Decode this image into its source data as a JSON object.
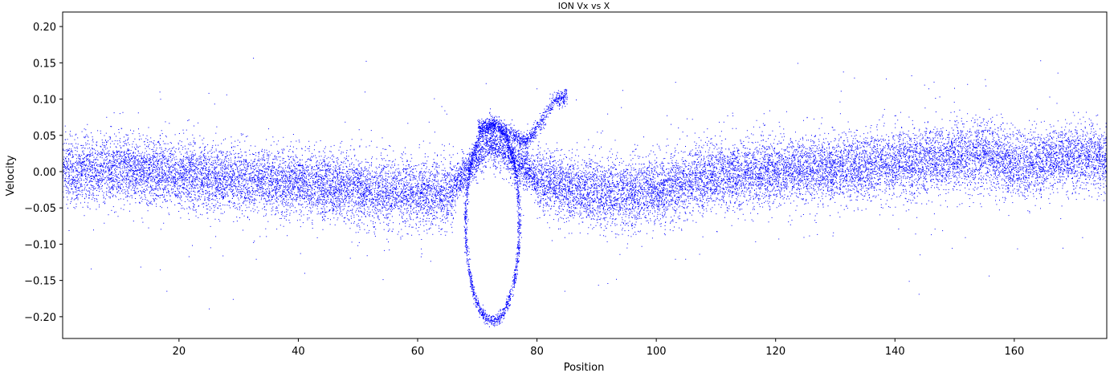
{
  "chart_data": {
    "type": "scatter",
    "title": "ION Vx vs X",
    "xlabel": "Position",
    "ylabel": "Velocity",
    "xlim": [
      0.5,
      175.5
    ],
    "ylim": [
      -0.23,
      0.22
    ],
    "xticks": [
      20,
      40,
      60,
      80,
      100,
      120,
      140,
      160
    ],
    "xtick_labels": [
      "20",
      "40",
      "60",
      "80",
      "100",
      "120",
      "140",
      "160"
    ],
    "yticks": [
      -0.2,
      -0.15,
      -0.1,
      -0.05,
      0.0,
      0.05,
      0.1,
      0.15,
      0.2
    ],
    "ytick_labels": [
      "−0.20",
      "−0.15",
      "−0.10",
      "−0.05",
      "0.00",
      "0.05",
      "0.10",
      "0.15",
      "0.20"
    ],
    "marker_color": "#0000ff",
    "grid": false,
    "legend": "none",
    "series": [
      {
        "description_of_distribution": "dense particle band",
        "mean_curve": [
          [
            0,
            0.0
          ],
          [
            10,
            0.005
          ],
          [
            20,
            -0.005
          ],
          [
            30,
            -0.01
          ],
          [
            40,
            -0.015
          ],
          [
            50,
            -0.025
          ],
          [
            60,
            -0.03
          ],
          [
            65,
            -0.03
          ],
          [
            68,
            0.0
          ],
          [
            72,
            0.04
          ],
          [
            76,
            0.02
          ],
          [
            80,
            -0.01
          ],
          [
            85,
            -0.02
          ],
          [
            90,
            -0.03
          ],
          [
            95,
            -0.03
          ],
          [
            100,
            -0.025
          ],
          [
            110,
            -0.005
          ],
          [
            120,
            0.0
          ],
          [
            130,
            0.005
          ],
          [
            140,
            0.01
          ],
          [
            150,
            0.02
          ],
          [
            155,
            0.025
          ],
          [
            160,
            0.01
          ],
          [
            170,
            0.02
          ],
          [
            175,
            0.02
          ]
        ],
        "spread": 0.03
      },
      {
        "description_of_distribution": "vortex loop",
        "loop": {
          "center_x": 72.5,
          "center_y": -0.07,
          "radius_x": 4.5,
          "radius_y": 0.135
        }
      },
      {
        "description_of_distribution": "upper beam",
        "arc": [
          [
            70,
            0.06
          ],
          [
            73,
            0.065
          ],
          [
            76,
            0.05
          ],
          [
            78,
            0.04
          ],
          [
            80,
            0.06
          ],
          [
            83,
            0.1
          ],
          [
            85,
            0.105
          ]
        ]
      }
    ]
  }
}
